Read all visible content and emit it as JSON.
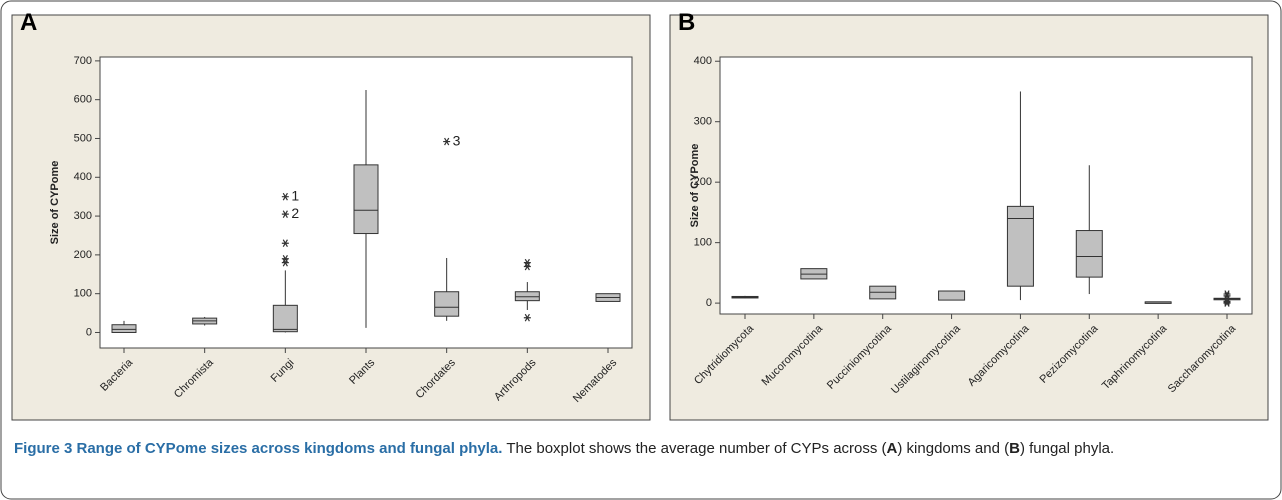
{
  "chart_data": [
    {
      "type": "box",
      "panel": "A",
      "y_label": "Size of CYPome",
      "categories": [
        "Bacteria",
        "Chromista",
        "Fungi",
        "Plants",
        "Chordates",
        "Arthropods",
        "Nematodes"
      ],
      "min": [
        0,
        18,
        0,
        12,
        30,
        58,
        80
      ],
      "q1": [
        0,
        22,
        2,
        255,
        42,
        82,
        80
      ],
      "median": [
        8,
        30,
        8,
        315,
        65,
        92,
        90
      ],
      "q3": [
        20,
        37,
        70,
        432,
        105,
        105,
        100
      ],
      "max": [
        30,
        40,
        160,
        625,
        192,
        130,
        100
      ],
      "outliers": [
        [],
        [],
        [
          {
            "value": 350,
            "label": "1"
          },
          {
            "value": 305,
            "label": "2"
          },
          230,
          190,
          180
        ],
        [],
        [
          {
            "value": 492,
            "label": "3"
          }
        ],
        [
          180,
          170,
          38
        ],
        []
      ],
      "color": "#c0c0c0",
      "ylim": [
        -40,
        710
      ],
      "yticks": [
        0,
        100,
        200,
        300,
        400,
        500,
        600,
        700
      ]
    },
    {
      "type": "box",
      "panel": "B",
      "y_label": "Size of CYPome",
      "categories": [
        "Chytridiomycota",
        "Mucoromycotina",
        "Pucciniomycotina",
        "Ustilaginomycotina",
        "Agaricomycotina",
        "Pezizomycotina",
        "Taphrinomycotina",
        "Saccharomycotina"
      ],
      "min": [
        8,
        40,
        7,
        5,
        5,
        15,
        2,
        5
      ],
      "q1": [
        9,
        40,
        7,
        5,
        28,
        43,
        2,
        6
      ],
      "median": [
        10,
        48,
        18,
        20,
        140,
        77,
        2,
        7
      ],
      "q3": [
        11,
        57,
        28,
        20,
        160,
        120,
        2,
        8
      ],
      "max": [
        12,
        57,
        28,
        20,
        350,
        228,
        2,
        9
      ],
      "outliers": [
        [],
        [],
        [],
        [],
        [],
        [],
        [],
        [
          0,
          2,
          3,
          12,
          15
        ]
      ],
      "color": "#c0c0c0",
      "ylim": [
        -18,
        407
      ],
      "yticks": [
        0,
        100,
        200,
        300,
        400
      ]
    }
  ],
  "caption": {
    "title": "Figure 3 Range of CYPome sizes across kingdoms and fungal phyla.",
    "text": [
      " The boxplot shows the average number of CYPs across (",
      "A",
      ") kingdoms and (",
      "B",
      ") fungal phyla."
    ]
  }
}
